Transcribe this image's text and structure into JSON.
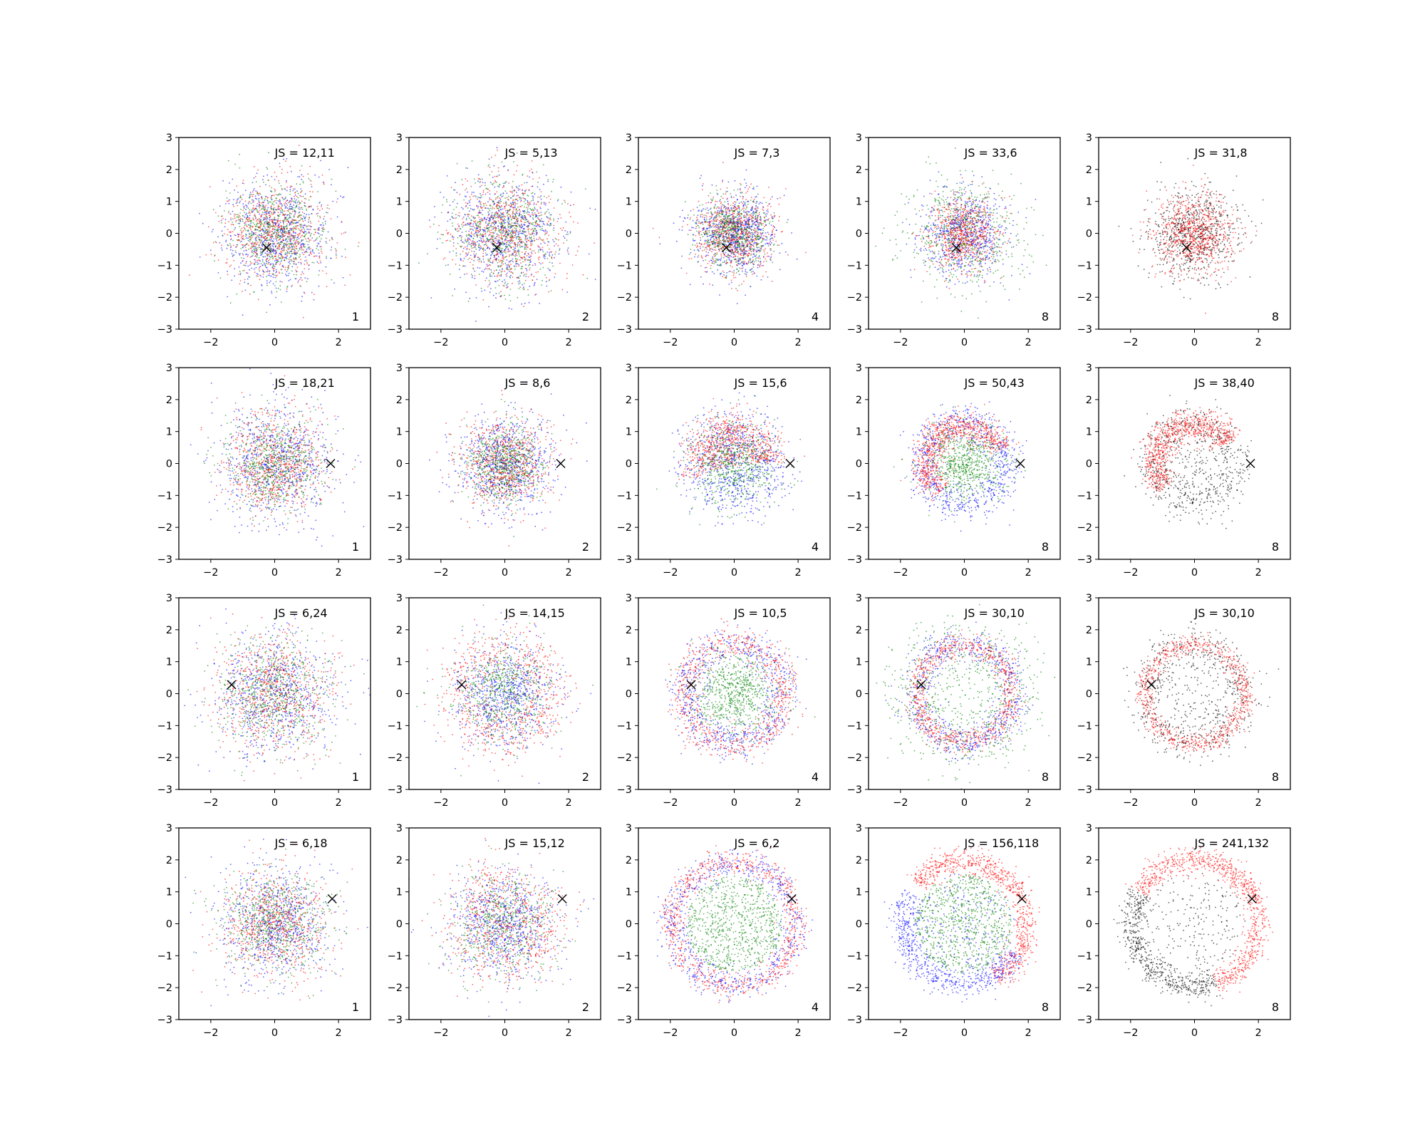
{
  "chart_data": {
    "type": "scatter",
    "layout": {
      "rows": 4,
      "cols": 5
    },
    "xlim": [
      -3,
      3
    ],
    "ylim": [
      -3,
      3
    ],
    "xticks": [
      -2,
      0,
      2
    ],
    "yticks": [
      -3,
      -2,
      -1,
      0,
      1,
      2,
      3
    ],
    "tick_labels_x": [
      "−2",
      "0",
      "2"
    ],
    "tick_labels_y": [
      "−3",
      "−2",
      "−1",
      "0",
      "1",
      "2",
      "3"
    ],
    "grid": false,
    "colors": {
      "red": "#ff0000",
      "blue": "#0000ff",
      "green": "#008000",
      "black": "#000000",
      "marker": "#000000"
    },
    "rows": [
      {
        "marker": {
          "x": -0.25,
          "y": -0.45
        },
        "panels": [
          {
            "js": "JS = 12,11",
            "n": "1"
          },
          {
            "js": "JS = 5,13",
            "n": "2"
          },
          {
            "js": "JS = 7,3",
            "n": "4"
          },
          {
            "js": "JS = 33,6",
            "n": "8"
          },
          {
            "js": "JS = 31,8",
            "n": "8"
          }
        ]
      },
      {
        "marker": {
          "x": 1.75,
          "y": 0.0
        },
        "panels": [
          {
            "js": "JS = 18,21",
            "n": "1"
          },
          {
            "js": "JS = 8,6",
            "n": "2"
          },
          {
            "js": "JS = 15,6",
            "n": "4"
          },
          {
            "js": "JS = 50,43",
            "n": "8"
          },
          {
            "js": "JS = 38,40",
            "n": "8"
          }
        ]
      },
      {
        "marker": {
          "x": -1.35,
          "y": 0.28
        },
        "panels": [
          {
            "js": "JS = 6,24",
            "n": "1"
          },
          {
            "js": "JS = 14,15",
            "n": "2"
          },
          {
            "js": "JS = 10,5",
            "n": "4"
          },
          {
            "js": "JS = 30,10",
            "n": "8"
          },
          {
            "js": "JS = 30,10",
            "n": "8"
          }
        ]
      },
      {
        "marker": {
          "x": 1.8,
          "y": 0.78
        },
        "panels": [
          {
            "js": "JS = 6,18",
            "n": "1"
          },
          {
            "js": "JS = 15,12",
            "n": "2"
          },
          {
            "js": "JS = 6,2",
            "n": "4"
          },
          {
            "js": "JS = 156,118",
            "n": "8"
          },
          {
            "js": "JS = 241,132",
            "n": "8"
          }
        ]
      }
    ]
  }
}
